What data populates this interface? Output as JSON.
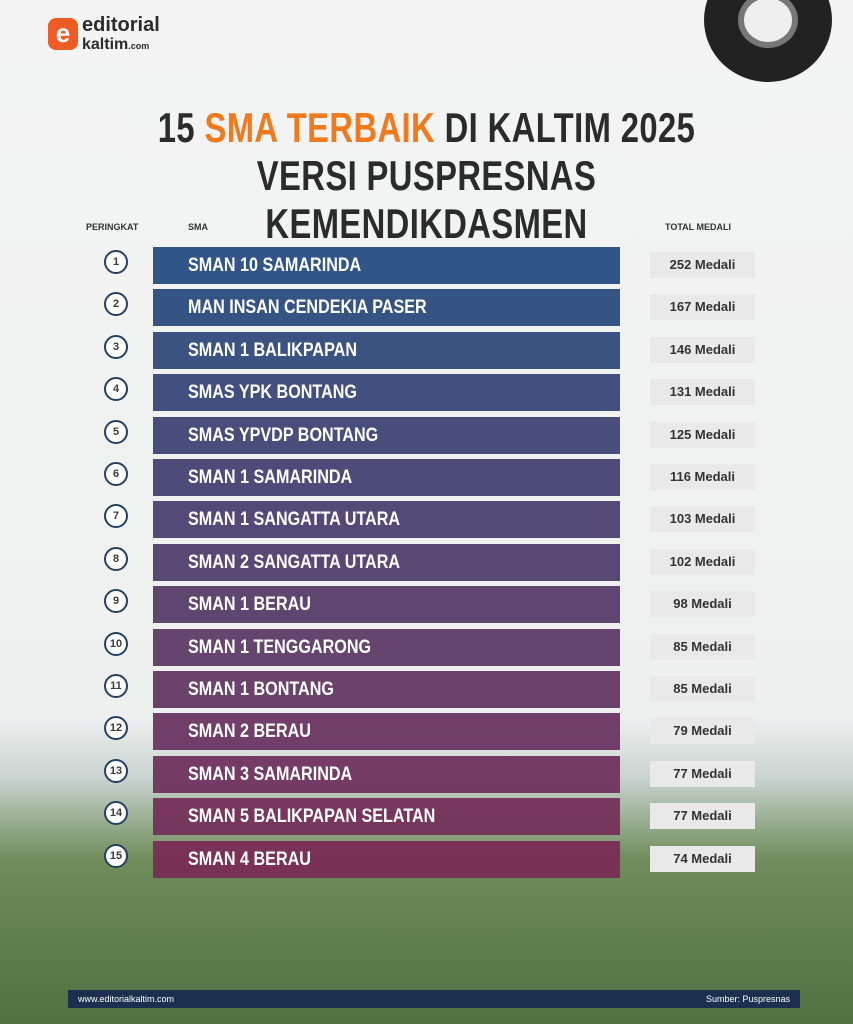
{
  "header": {
    "brand": "editorial",
    "brand_sub": "kaltim",
    "brand_domain": ".com"
  },
  "title": {
    "line1_a": "15 ",
    "line1_b": "SMA TERBAIK",
    "line1_c": " DI KALTIM 2025",
    "line2": "VERSI PUSPRESNAS KEMENDIKDASMEN"
  },
  "table": {
    "columns": [
      "PERINGKAT",
      "SMA",
      "TOTAL MEDALI"
    ],
    "rows": [
      [
        "1",
        "SMAN 10 SAMARINDA",
        "252 Medali"
      ],
      [
        "2",
        "MAN INSAN CENDEKIA PASER",
        "167 Medali"
      ],
      [
        "3",
        "SMAN 1 BALIKPAPAN",
        "146 Medali"
      ],
      [
        "4",
        "SMAS YPK BONTANG",
        "131 Medali"
      ],
      [
        "5",
        "SMAS YPVDP BONTANG",
        "125 Medali"
      ],
      [
        "6",
        "SMAN 1 SAMARINDA",
        "116 Medali"
      ],
      [
        "7",
        "SMAN 1 SANGATTA UTARA",
        "103 Medali"
      ],
      [
        "8",
        "SMAN 2 SANGATTA UTARA",
        "102 Medali"
      ],
      [
        "9",
        "SMAN 1 BERAU",
        "98 Medali"
      ],
      [
        "10",
        "SMAN 1 TENGGARONG",
        "85 Medali"
      ],
      [
        "11",
        "SMAN 1 BONTANG",
        "85 Medali"
      ],
      [
        "12",
        "SMAN 2 BERAU",
        "79 Medali"
      ],
      [
        "13",
        "SMAN 3 SAMARINDA",
        "77 Medali"
      ],
      [
        "14",
        "SMAN 5 BALIKPAPAN SELATAN",
        "77 Medali"
      ],
      [
        "15",
        "SMAN 4 BERAU",
        "74 Medali"
      ]
    ]
  },
  "footer": {
    "website": "www.editorialkaltim.com",
    "source": "Sumber: Puspresnas"
  }
}
